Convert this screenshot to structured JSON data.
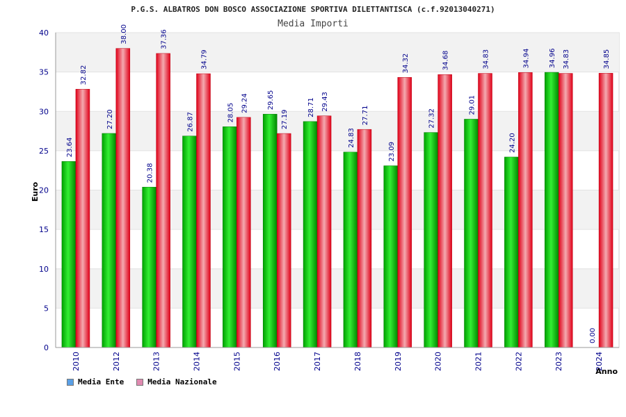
{
  "chart_data": {
    "type": "bar",
    "title": "P.G.S. ALBATROS DON BOSCO ASSOCIAZIONE SPORTIVA DILETTANTISCA (c.f.92013040271)",
    "subtitle": "Media Importi",
    "xlabel": "Anno",
    "ylabel": "Euro",
    "ylim": [
      0,
      40
    ],
    "yticks": [
      0,
      5,
      10,
      15,
      20,
      25,
      30,
      35,
      40
    ],
    "categories": [
      "2010",
      "2012",
      "2013",
      "2014",
      "2015",
      "2016",
      "2017",
      "2018",
      "2019",
      "2020",
      "2021",
      "2022",
      "2023",
      "2024"
    ],
    "series": [
      {
        "name": "Media Ente",
        "color": "#22cc22",
        "legend_color": "#5aa0e6",
        "values": [
          23.64,
          27.2,
          20.38,
          26.87,
          28.05,
          29.65,
          28.71,
          24.83,
          23.09,
          27.32,
          29.01,
          24.2,
          34.96,
          0.0
        ],
        "labels": [
          "23.64",
          "27.20",
          "20.38",
          "26.87",
          "28.05",
          "29.65",
          "28.71",
          "24.83",
          "23.09",
          "27.32",
          "29.01",
          "24.20",
          "34.96",
          "0.00"
        ]
      },
      {
        "name": "Media Nazionale",
        "color": "#ee2233",
        "legend_color": "#e08ab0",
        "values": [
          32.82,
          38.0,
          37.36,
          34.79,
          29.24,
          27.19,
          29.43,
          27.71,
          34.32,
          34.68,
          34.83,
          34.94,
          34.83,
          34.85
        ],
        "labels": [
          "32.82",
          "38.00",
          "37.36",
          "34.79",
          "29.24",
          "27.19",
          "29.43",
          "27.71",
          "34.32",
          "34.68",
          "34.83",
          "34.94",
          "34.83",
          "34.85"
        ]
      }
    ],
    "grid": true,
    "legend_position": "bottom-left"
  }
}
